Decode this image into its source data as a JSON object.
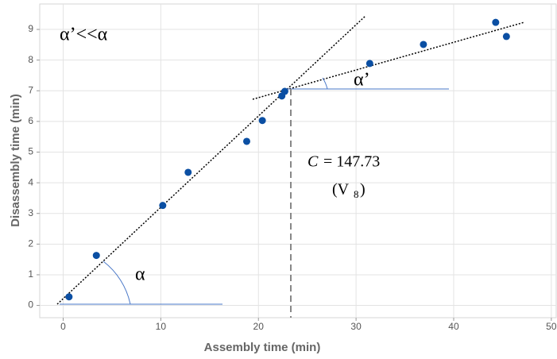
{
  "chart_data": {
    "type": "scatter",
    "x_label": "Assembly time (min)",
    "y_label": "Disassembly time (min)",
    "x": [
      0.6,
      3.4,
      10.2,
      12.8,
      18.8,
      20.4,
      22.4,
      22.7,
      31.4,
      36.9,
      44.3,
      45.4
    ],
    "values": [
      0.28,
      1.63,
      3.26,
      4.34,
      5.35,
      6.03,
      6.83,
      6.98,
      7.89,
      8.51,
      9.23,
      8.77
    ],
    "color": "#0b4fa3",
    "xlim": [
      -2.4,
      50.5
    ],
    "xticks": [
      0,
      10,
      20,
      30,
      40,
      50
    ],
    "ylim": [
      -0.4,
      9.83
    ],
    "yticks": [
      0,
      1,
      2,
      3,
      4,
      5,
      6,
      7,
      8,
      9
    ],
    "grid": true,
    "annotations": {
      "ratio": "α’<<α",
      "alpha": "α",
      "alpha_prime": "α’",
      "c_var": "C",
      "c_value": "= 147.73",
      "v_open": "(V",
      "v_sub": "8",
      "v_close": ")"
    }
  }
}
